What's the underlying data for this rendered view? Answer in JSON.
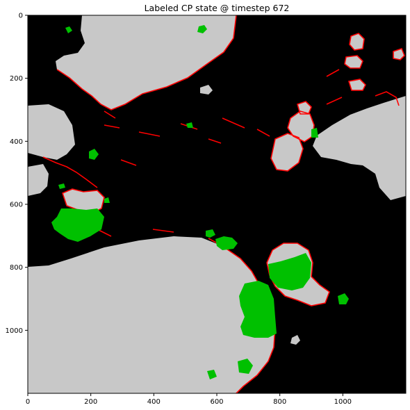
{
  "chart_data": {
    "type": "heatmap",
    "title": "Labeled CP state @ timestep 672",
    "xlabel": "",
    "ylabel": "",
    "xlim": [
      0,
      1200
    ],
    "ylim": [
      1200,
      0
    ],
    "xticks": [
      0,
      200,
      400,
      600,
      800,
      1000
    ],
    "yticks": [
      0,
      200,
      400,
      600,
      800,
      1000
    ],
    "grid": false,
    "colors": {
      "background": "#000000",
      "land": "#c8c8c8",
      "boundary": "#ff0000",
      "labeled": "#00c000"
    },
    "categories": [
      "background",
      "land",
      "boundary",
      "labeled"
    ]
  }
}
